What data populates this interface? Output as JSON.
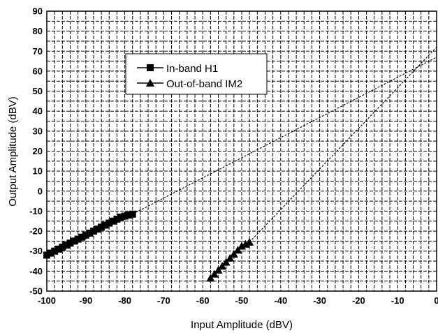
{
  "chart_data": {
    "type": "scatter",
    "xlabel": "Input Amplitude (dBV)",
    "ylabel": "Output Amplitude (dBV)",
    "xlim": [
      -100,
      0
    ],
    "ylim": [
      -50,
      90
    ],
    "xticks": [
      -100,
      -90,
      -80,
      -70,
      -60,
      -50,
      -40,
      -30,
      -20,
      -10,
      0
    ],
    "yticks": [
      -50,
      -40,
      -30,
      -20,
      -10,
      0,
      10,
      20,
      30,
      40,
      50,
      60,
      70,
      80,
      90
    ],
    "x_minor_step": 2,
    "y_minor_step": 5,
    "grid": true,
    "legend_position": "top-left",
    "series": [
      {
        "name": "In-band H1",
        "marker": "square",
        "x": [
          -100,
          -99,
          -98,
          -97,
          -96,
          -95,
          -94,
          -93,
          -92,
          -91,
          -90,
          -89,
          -88,
          -87,
          -86,
          -85,
          -84,
          -83,
          -82,
          -81,
          -80,
          -79,
          -78
        ],
        "y": [
          -32,
          -31,
          -30,
          -29,
          -28,
          -27,
          -26,
          -25,
          -24,
          -23,
          -22,
          -21,
          -20,
          -19,
          -18,
          -17,
          -16,
          -15,
          -14,
          -13,
          -12.5,
          -12,
          -11.5
        ]
      },
      {
        "name": "Out-of-band IM2",
        "marker": "triangle",
        "x": [
          -58,
          -57,
          -56,
          -55,
          -54,
          -53,
          -52,
          -51,
          -50,
          -49,
          -48
        ],
        "y": [
          -43.5,
          -41.5,
          -39.5,
          -37.5,
          -35.5,
          -33.5,
          -31.5,
          -29.5,
          -27.5,
          -26.5,
          -25.5
        ]
      }
    ],
    "extrapolations": [
      {
        "series": "In-band H1",
        "x": [
          -78,
          0
        ],
        "y": [
          -11.5,
          67
        ]
      },
      {
        "series": "Out-of-band IM2",
        "x": [
          -48,
          0
        ],
        "y": [
          -25.5,
          72
        ]
      }
    ]
  }
}
